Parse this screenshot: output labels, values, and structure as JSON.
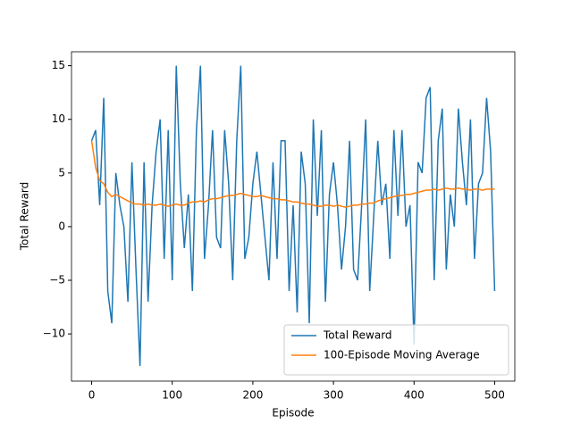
{
  "chart_data": {
    "type": "line",
    "x_label": "Episode",
    "y_label": "Total Reward",
    "x": [
      0,
      5,
      10,
      15,
      20,
      25,
      30,
      35,
      40,
      45,
      50,
      55,
      60,
      65,
      70,
      75,
      80,
      85,
      90,
      95,
      100,
      105,
      110,
      115,
      120,
      125,
      130,
      135,
      140,
      145,
      150,
      155,
      160,
      165,
      170,
      175,
      180,
      185,
      190,
      195,
      200,
      205,
      210,
      215,
      220,
      225,
      230,
      235,
      240,
      245,
      250,
      255,
      260,
      265,
      270,
      275,
      280,
      285,
      290,
      295,
      300,
      305,
      310,
      315,
      320,
      325,
      330,
      335,
      340,
      345,
      350,
      355,
      360,
      365,
      370,
      375,
      380,
      385,
      390,
      395,
      400,
      405,
      410,
      415,
      420,
      425,
      430,
      435,
      440,
      445,
      450,
      455,
      460,
      465,
      470,
      475,
      480,
      485,
      490,
      495,
      500
    ],
    "series": [
      {
        "name": "Total Reward",
        "color": "#1f77b4",
        "values": [
          8,
          9,
          2,
          12,
          -6,
          -9,
          5,
          2,
          0,
          -7,
          6,
          -4,
          -13,
          6,
          -7,
          2,
          7,
          10,
          -3,
          9,
          -5,
          15,
          4,
          -2,
          3,
          -6,
          9,
          15,
          -3,
          2,
          9,
          -1,
          -2,
          9,
          4,
          -5,
          8,
          15,
          -3,
          -1,
          4,
          7,
          3,
          -1,
          -5,
          6,
          -3,
          8,
          8,
          -6,
          2,
          -8,
          7,
          4,
          -9,
          10,
          1,
          9,
          -7,
          3,
          6,
          2,
          -4,
          0,
          8,
          -4,
          -5,
          2,
          10,
          -6,
          1,
          8,
          2,
          4,
          -3,
          9,
          1,
          9,
          0,
          2,
          -11,
          6,
          5,
          12,
          13,
          -5,
          8,
          11,
          -4,
          3,
          0,
          11,
          6,
          2,
          10,
          -3,
          4,
          5,
          12,
          7,
          -6
        ]
      },
      {
        "name": "100-Episode Moving Average",
        "color": "#ff7f0e",
        "values": [
          8,
          5.5,
          4.3,
          4,
          3.2,
          2.8,
          3,
          2.8,
          2.6,
          2.4,
          2.2,
          2.1,
          2.1,
          2,
          2.1,
          2,
          2,
          2.1,
          2,
          1.9,
          2,
          2.1,
          2,
          2,
          2.2,
          2.3,
          2.3,
          2.4,
          2.3,
          2.5,
          2.6,
          2.6,
          2.7,
          2.8,
          2.9,
          2.9,
          3,
          3.1,
          3,
          2.9,
          2.8,
          2.8,
          2.9,
          2.8,
          2.7,
          2.6,
          2.6,
          2.5,
          2.5,
          2.4,
          2.3,
          2.3,
          2.2,
          2.1,
          2.1,
          2,
          1.9,
          1.9,
          2,
          2,
          1.9,
          2,
          1.9,
          1.8,
          1.9,
          2,
          2,
          2.1,
          2.1,
          2.2,
          2.2,
          2.4,
          2.5,
          2.6,
          2.7,
          2.8,
          2.9,
          2.9,
          3,
          3,
          3.1,
          3.2,
          3.3,
          3.4,
          3.4,
          3.5,
          3.4,
          3.5,
          3.6,
          3.5,
          3.5,
          3.6,
          3.5,
          3.5,
          3.4,
          3.5,
          3.5,
          3.4,
          3.5,
          3.5,
          3.5
        ]
      }
    ],
    "xlim": [
      -25,
      525
    ],
    "xticks": [
      0,
      100,
      200,
      300,
      400,
      500
    ],
    "ylim": [
      -14.4,
      16.3
    ],
    "yticks": [
      {
        "value": -10,
        "label": "−10"
      },
      {
        "value": -5,
        "label": "−5"
      },
      0,
      5,
      10,
      15
    ],
    "legend_position": "lower right"
  }
}
